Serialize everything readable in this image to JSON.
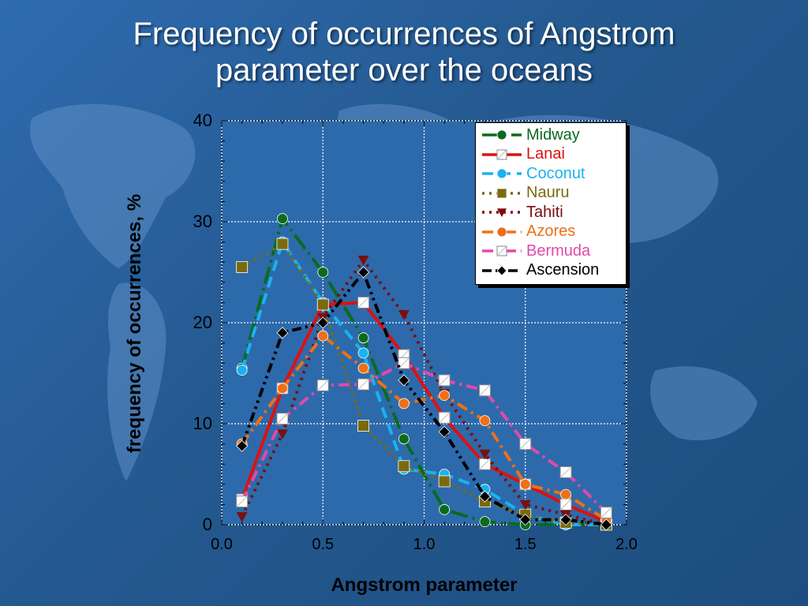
{
  "title": {
    "line1": "Frequency of occurrences of Angstrom",
    "line2": "parameter over the oceans"
  },
  "colors": {
    "background": "#2a62a3",
    "plot_background": "#2d6aab",
    "grid": "#ffffff",
    "title_text": "#ffffff"
  },
  "chart_data": {
    "type": "line",
    "xlabel": "Angstrom parameter",
    "ylabel": "frequency of occurrences, %",
    "xlim": [
      0.0,
      2.0
    ],
    "ylim": [
      0,
      40
    ],
    "xticks": [
      "0.0",
      "0.5",
      "1.0",
      "1.5",
      "2.0"
    ],
    "yticks": [
      "0",
      "10",
      "20",
      "30",
      "40"
    ],
    "grid": true,
    "legend_position": "top-right",
    "x": [
      0.1,
      0.3,
      0.5,
      0.7,
      0.9,
      1.1,
      1.3,
      1.5,
      1.7,
      1.9
    ],
    "series": [
      {
        "name": "Midway",
        "color": "#0a6b1e",
        "marker": "circle",
        "dash": "long-dash-dot",
        "values": [
          15.5,
          30.3,
          25.0,
          18.5,
          8.5,
          1.5,
          0.3,
          0.0,
          0.0,
          0.0
        ]
      },
      {
        "name": "Lanai",
        "color": "#dd1111",
        "marker": "square-open",
        "dash": "solid",
        "values": [
          2.5,
          13.5,
          21.8,
          22.0,
          16.8,
          10.6,
          6.0,
          4.0,
          2.0,
          0.3
        ]
      },
      {
        "name": "Coconut",
        "color": "#1ab2f0",
        "marker": "circle",
        "dash": "dashed",
        "values": [
          15.3,
          28.0,
          22.0,
          17.0,
          5.5,
          5.0,
          3.5,
          1.0,
          0.0,
          0.0
        ]
      },
      {
        "name": "Nauru",
        "color": "#7a6a0e",
        "marker": "square",
        "dash": "dotted",
        "values": [
          25.5,
          27.8,
          21.8,
          9.8,
          5.8,
          4.3,
          2.3,
          1.0,
          0.2,
          0.0
        ]
      },
      {
        "name": "Tahiti",
        "color": "#7a0f10",
        "marker": "triangle-down",
        "dash": "dotted",
        "values": [
          0.8,
          9.0,
          20.5,
          26.2,
          20.8,
          13.0,
          7.0,
          2.0,
          1.0,
          0.0
        ]
      },
      {
        "name": "Azores",
        "color": "#ee7018",
        "marker": "circle",
        "dash": "dash-dot",
        "values": [
          8.0,
          13.5,
          18.7,
          15.5,
          12.0,
          12.8,
          10.3,
          4.0,
          3.0,
          0.5
        ]
      },
      {
        "name": "Bermuda",
        "color": "#e24aa8",
        "marker": "square-open",
        "dash": "dash-dot",
        "values": [
          2.3,
          10.5,
          13.8,
          13.9,
          16.0,
          14.3,
          13.3,
          8.0,
          5.2,
          1.2
        ]
      },
      {
        "name": "Ascension",
        "color": "#000000",
        "marker": "diamond",
        "dash": "dash-dot-dot",
        "values": [
          7.8,
          19.0,
          20.0,
          25.0,
          14.3,
          9.2,
          2.8,
          0.5,
          0.5,
          0.0
        ]
      }
    ]
  }
}
